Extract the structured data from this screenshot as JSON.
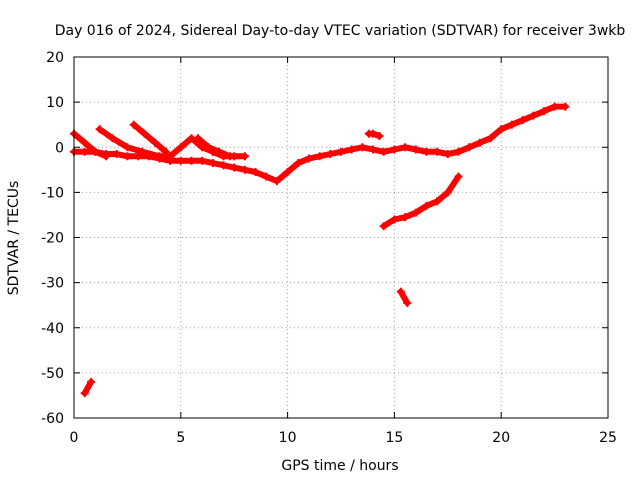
{
  "chart_data": {
    "type": "scatter",
    "title": "Day 016 of 2024, Sidereal Day-to-day VTEC variation (SDTVAR) for receiver 3wkb",
    "xlabel": "GPS time / hours",
    "ylabel": "SDTVAR / TECUs",
    "xlim": [
      0,
      25
    ],
    "ylim": [
      -60,
      20
    ],
    "xticks": [
      0,
      5,
      10,
      15,
      20,
      25
    ],
    "yticks": [
      -60,
      -50,
      -40,
      -30,
      -20,
      -10,
      0,
      10,
      20
    ],
    "grid": true,
    "legend": "none",
    "series_color": "#ff0000",
    "series": [
      {
        "name": "main-trend",
        "x": [
          0.0,
          0.5,
          1.0,
          1.5,
          2.0,
          2.5,
          3.0,
          3.5,
          4.0,
          4.5,
          5.0,
          5.5,
          6.0,
          6.5,
          7.0,
          7.5,
          8.0,
          8.5,
          9.0,
          9.5,
          10.0,
          10.5,
          11.0,
          11.5,
          12.0,
          12.5,
          13.0,
          13.5,
          14.0,
          14.5,
          15.0,
          15.5,
          16.0,
          16.5,
          17.0,
          17.5,
          18.0,
          18.5,
          19.0,
          19.5,
          20.0,
          20.5,
          21.0,
          21.5,
          22.0,
          22.5,
          23.0
        ],
        "y": [
          -1,
          -1,
          -1,
          -1.5,
          -1.5,
          -2,
          -2,
          -2,
          -2.5,
          -3,
          -3,
          -3,
          -3,
          -3.5,
          -4,
          -4.5,
          -5,
          -5.5,
          -6.5,
          -7.5,
          -5.5,
          -3.5,
          -2.5,
          -2,
          -1.5,
          -1,
          -0.5,
          0,
          -0.5,
          -1,
          -0.5,
          0,
          -0.5,
          -1,
          -1,
          -1.5,
          -1,
          0,
          1,
          2,
          4,
          5,
          6,
          7,
          8,
          9,
          9
        ]
      },
      {
        "name": "spur-0-3",
        "x": [
          0.0,
          0.5,
          1.0,
          1.5
        ],
        "y": [
          3,
          1,
          -1,
          -2
        ]
      },
      {
        "name": "spur-1-3",
        "x": [
          1.2,
          1.8,
          2.5,
          3.2,
          4.0,
          4.5
        ],
        "y": [
          4,
          2,
          0,
          -1,
          -2,
          -2
        ]
      },
      {
        "name": "spur-2-4",
        "x": [
          2.8,
          3.3,
          3.8,
          4.3
        ],
        "y": [
          5,
          3,
          1,
          -1
        ]
      },
      {
        "name": "spur-5-6",
        "x": [
          4.5,
          5.0,
          5.5,
          6.0,
          6.5
        ],
        "y": [
          -2,
          0,
          2,
          0,
          -1
        ]
      },
      {
        "name": "spur-6-7",
        "x": [
          5.8,
          6.3,
          6.8,
          7.3
        ],
        "y": [
          2,
          0,
          -1,
          -2
        ]
      },
      {
        "name": "spur-7-8",
        "x": [
          6.5,
          7.0,
          7.5,
          8.0
        ],
        "y": [
          -1,
          -2,
          -2,
          -2
        ]
      },
      {
        "name": "blip-14",
        "x": [
          13.8,
          14.0,
          14.3
        ],
        "y": [
          3,
          3,
          2.5
        ]
      },
      {
        "name": "branch-15-18",
        "x": [
          14.5,
          15.0,
          15.5,
          16.0,
          16.5,
          17.0,
          17.5,
          18.0
        ],
        "y": [
          -17.5,
          -16,
          -15.5,
          -14.5,
          -13,
          -12,
          -10,
          -6.5
        ]
      },
      {
        "name": "segment-15-6",
        "x": [
          15.3,
          15.6
        ],
        "y": [
          -32,
          -34.5
        ]
      },
      {
        "name": "segment-0-6",
        "x": [
          0.5,
          0.8
        ],
        "y": [
          -54.5,
          -52
        ]
      }
    ]
  }
}
